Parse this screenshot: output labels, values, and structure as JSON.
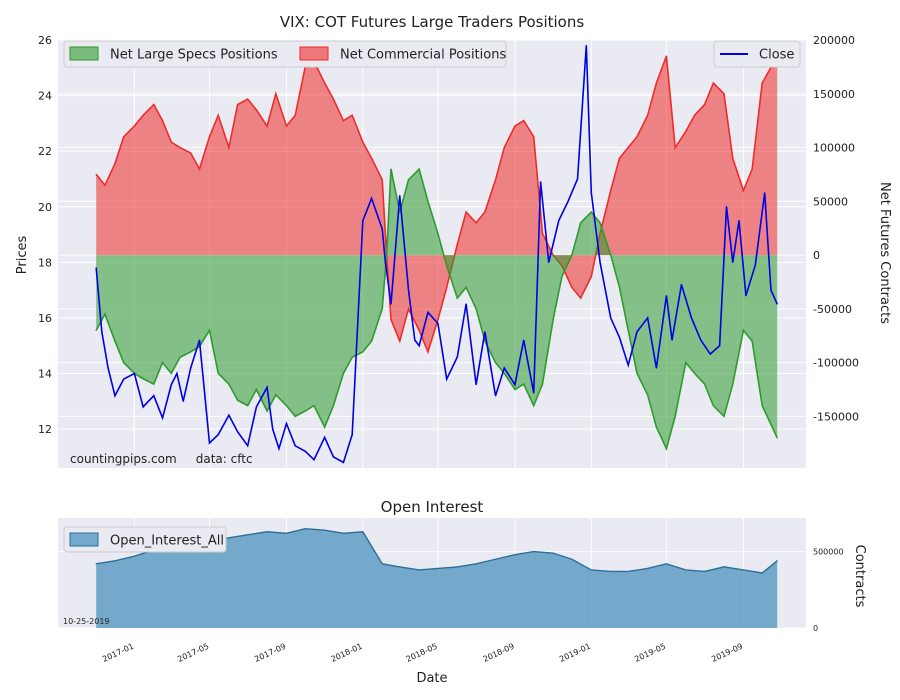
{
  "chart_data": [
    {
      "type": "area",
      "title": "VIX: COT Futures Large Traders Positions",
      "ylabel_left": "Prices",
      "ylabel_right": "Net Futures Contracts",
      "ylim_left": [
        10.6,
        26.0
      ],
      "ylim_right": [
        -198000,
        200000
      ],
      "yticks_left": [
        12,
        14,
        16,
        18,
        20,
        22,
        24,
        26
      ],
      "yticks_right": [
        -150000,
        -100000,
        -50000,
        0,
        50000,
        100000,
        150000,
        200000
      ],
      "grid": true,
      "legend_left": [
        "Net Large Specs Positions",
        "Net Commercial Positions"
      ],
      "legend_right": [
        "Close"
      ],
      "watermark": "countingpips.com     data: cftc",
      "colors": {
        "specs": "#2e9b2e",
        "commercial": "#ef2b2b",
        "close": "#0000e6",
        "background": "#eaeaf2"
      },
      "series": [
        {
          "name": "Net Large Specs Positions",
          "x": [
            "2016-11-01",
            "2016-11-15",
            "2016-12-01",
            "2016-12-15",
            "2017-01-01",
            "2017-01-15",
            "2017-02-01",
            "2017-02-15",
            "2017-03-01",
            "2017-03-15",
            "2017-04-01",
            "2017-04-15",
            "2017-05-01",
            "2017-05-15",
            "2017-06-01",
            "2017-06-15",
            "2017-07-01",
            "2017-07-15",
            "2017-08-01",
            "2017-08-15",
            "2017-09-01",
            "2017-09-15",
            "2017-10-01",
            "2017-10-15",
            "2017-11-01",
            "2017-11-15",
            "2017-12-01",
            "2017-12-15",
            "2018-01-01",
            "2018-01-15",
            "2018-02-01",
            "2018-02-08",
            "2018-02-15",
            "2018-03-01",
            "2018-03-15",
            "2018-04-01",
            "2018-04-15",
            "2018-05-01",
            "2018-05-15",
            "2018-06-01",
            "2018-06-15",
            "2018-07-01",
            "2018-07-15",
            "2018-08-01",
            "2018-08-15",
            "2018-09-01",
            "2018-09-15",
            "2018-10-01",
            "2018-10-15",
            "2018-11-01",
            "2018-11-15",
            "2018-12-01",
            "2018-12-15",
            "2019-01-01",
            "2019-01-15",
            "2019-02-01",
            "2019-02-15",
            "2019-03-01",
            "2019-03-15",
            "2019-04-01",
            "2019-04-15",
            "2019-05-01",
            "2019-05-15",
            "2019-06-01",
            "2019-06-15",
            "2019-07-01",
            "2019-07-15",
            "2019-08-01",
            "2019-08-15",
            "2019-09-01",
            "2019-09-15",
            "2019-10-01",
            "2019-10-25"
          ],
          "values": [
            -70000,
            -55000,
            -80000,
            -100000,
            -110000,
            -115000,
            -120000,
            -100000,
            -110000,
            -95000,
            -90000,
            -85000,
            -70000,
            -110000,
            -120000,
            -135000,
            -140000,
            -125000,
            -145000,
            -130000,
            -140000,
            -150000,
            -145000,
            -140000,
            -160000,
            -140000,
            -110000,
            -95000,
            -90000,
            -80000,
            -50000,
            0,
            80000,
            40000,
            70000,
            80000,
            50000,
            20000,
            -10000,
            -40000,
            -30000,
            -50000,
            -80000,
            -100000,
            -110000,
            -125000,
            -120000,
            -140000,
            -120000,
            -60000,
            -20000,
            0,
            30000,
            40000,
            30000,
            0,
            -30000,
            -70000,
            -110000,
            -130000,
            -160000,
            -180000,
            -150000,
            -100000,
            -110000,
            -120000,
            -140000,
            -150000,
            -120000,
            -70000,
            -80000,
            -140000,
            -170000
          ]
        },
        {
          "name": "Net Commercial Positions",
          "x": [
            "2016-11-01",
            "2016-11-15",
            "2016-12-01",
            "2016-12-15",
            "2017-01-01",
            "2017-01-15",
            "2017-02-01",
            "2017-02-15",
            "2017-03-01",
            "2017-03-15",
            "2017-04-01",
            "2017-04-15",
            "2017-05-01",
            "2017-05-15",
            "2017-06-01",
            "2017-06-15",
            "2017-07-01",
            "2017-07-15",
            "2017-08-01",
            "2017-08-15",
            "2017-09-01",
            "2017-09-15",
            "2017-10-01",
            "2017-10-15",
            "2017-11-01",
            "2017-11-15",
            "2017-12-01",
            "2017-12-15",
            "2018-01-01",
            "2018-01-15",
            "2018-02-01",
            "2018-02-08",
            "2018-02-15",
            "2018-03-01",
            "2018-03-15",
            "2018-04-01",
            "2018-04-15",
            "2018-05-01",
            "2018-05-15",
            "2018-06-01",
            "2018-06-15",
            "2018-07-01",
            "2018-07-15",
            "2018-08-01",
            "2018-08-15",
            "2018-09-01",
            "2018-09-15",
            "2018-10-01",
            "2018-10-15",
            "2018-11-01",
            "2018-11-15",
            "2018-12-01",
            "2018-12-15",
            "2019-01-01",
            "2019-01-15",
            "2019-02-01",
            "2019-02-15",
            "2019-03-01",
            "2019-03-15",
            "2019-04-01",
            "2019-04-15",
            "2019-05-01",
            "2019-05-15",
            "2019-06-01",
            "2019-06-15",
            "2019-07-01",
            "2019-07-15",
            "2019-08-01",
            "2019-08-15",
            "2019-09-01",
            "2019-09-15",
            "2019-10-01",
            "2019-10-25"
          ],
          "values": [
            75000,
            65000,
            85000,
            110000,
            120000,
            130000,
            140000,
            125000,
            105000,
            100000,
            95000,
            80000,
            110000,
            130000,
            100000,
            140000,
            145000,
            135000,
            120000,
            150000,
            120000,
            130000,
            175000,
            180000,
            160000,
            145000,
            125000,
            130000,
            105000,
            90000,
            70000,
            0,
            -60000,
            -80000,
            -50000,
            -70000,
            -90000,
            -60000,
            -30000,
            10000,
            40000,
            30000,
            40000,
            70000,
            100000,
            120000,
            125000,
            110000,
            20000,
            0,
            -10000,
            -30000,
            -40000,
            -20000,
            20000,
            60000,
            90000,
            100000,
            110000,
            130000,
            160000,
            185000,
            100000,
            115000,
            130000,
            140000,
            160000,
            150000,
            90000,
            60000,
            80000,
            160000,
            185000
          ]
        },
        {
          "name": "Close",
          "axis": "left",
          "x": [
            "2016-11-01",
            "2016-11-10",
            "2016-11-20",
            "2016-12-01",
            "2016-12-15",
            "2017-01-01",
            "2017-01-15",
            "2017-02-01",
            "2017-02-15",
            "2017-03-01",
            "2017-03-10",
            "2017-03-20",
            "2017-04-01",
            "2017-04-15",
            "2017-05-01",
            "2017-05-15",
            "2017-06-01",
            "2017-06-15",
            "2017-07-01",
            "2017-07-15",
            "2017-08-01",
            "2017-08-10",
            "2017-08-20",
            "2017-09-01",
            "2017-09-15",
            "2017-10-01",
            "2017-10-15",
            "2017-11-01",
            "2017-11-15",
            "2017-12-01",
            "2017-12-15",
            "2018-01-01",
            "2018-01-15",
            "2018-02-01",
            "2018-02-06",
            "2018-02-15",
            "2018-03-01",
            "2018-03-15",
            "2018-03-25",
            "2018-04-01",
            "2018-04-15",
            "2018-05-01",
            "2018-05-15",
            "2018-06-01",
            "2018-06-15",
            "2018-07-01",
            "2018-07-15",
            "2018-08-01",
            "2018-08-15",
            "2018-09-01",
            "2018-09-15",
            "2018-10-01",
            "2018-10-12",
            "2018-10-25",
            "2018-11-10",
            "2018-11-25",
            "2018-12-10",
            "2018-12-24",
            "2019-01-01",
            "2019-01-15",
            "2019-02-01",
            "2019-02-15",
            "2019-03-01",
            "2019-03-15",
            "2019-04-01",
            "2019-04-15",
            "2019-05-01",
            "2019-05-10",
            "2019-05-25",
            "2019-06-10",
            "2019-06-25",
            "2019-07-10",
            "2019-07-25",
            "2019-08-05",
            "2019-08-15",
            "2019-08-25",
            "2019-09-05",
            "2019-09-20",
            "2019-10-05",
            "2019-10-15",
            "2019-10-25"
          ],
          "values": [
            17.8,
            15.5,
            14.2,
            13.2,
            13.8,
            14.0,
            12.8,
            13.2,
            12.4,
            13.6,
            14.0,
            13.0,
            14.2,
            15.2,
            11.5,
            11.8,
            12.5,
            11.9,
            11.4,
            12.8,
            13.5,
            12.0,
            11.3,
            12.2,
            11.4,
            11.2,
            10.9,
            11.7,
            11.0,
            10.8,
            11.8,
            19.5,
            20.3,
            19.2,
            18.0,
            16.5,
            20.4,
            17.0,
            15.2,
            15.0,
            16.2,
            15.8,
            13.8,
            14.6,
            16.5,
            13.6,
            15.5,
            13.2,
            14.2,
            13.6,
            15.2,
            13.3,
            20.9,
            18.0,
            19.5,
            20.2,
            21.0,
            25.8,
            20.5,
            18.0,
            16.0,
            15.3,
            14.3,
            15.5,
            16.0,
            14.2,
            16.8,
            15.2,
            17.2,
            16.0,
            15.2,
            14.7,
            15.0,
            20.0,
            18.0,
            19.5,
            16.8,
            17.9,
            20.5,
            17.0,
            16.5
          ]
        }
      ]
    },
    {
      "type": "area",
      "title": "Open Interest",
      "xlabel": "Date",
      "ylabel": "Contracts",
      "ylim": [
        0,
        720000
      ],
      "yticks": [
        0,
        500000
      ],
      "xticks": [
        "2017-01",
        "2017-05",
        "2017-09",
        "2018-01",
        "2018-05",
        "2018-09",
        "2019-01",
        "2019-05",
        "2019-09"
      ],
      "legend": [
        "Open_Interest_All"
      ],
      "date_label": "10-25-2019",
      "colors": {
        "fill": "#5f9ec5",
        "line": "#2d6f9a"
      },
      "series": [
        {
          "name": "Open_Interest_All",
          "x": [
            "2016-11-01",
            "2016-12-01",
            "2017-01-01",
            "2017-02-01",
            "2017-03-01",
            "2017-04-01",
            "2017-05-01",
            "2017-06-01",
            "2017-07-01",
            "2017-08-01",
            "2017-09-01",
            "2017-10-01",
            "2017-11-01",
            "2017-12-01",
            "2018-01-01",
            "2018-02-01",
            "2018-03-01",
            "2018-04-01",
            "2018-05-01",
            "2018-06-01",
            "2018-07-01",
            "2018-08-01",
            "2018-09-01",
            "2018-10-01",
            "2018-11-01",
            "2018-12-01",
            "2019-01-01",
            "2019-02-01",
            "2019-03-01",
            "2019-04-01",
            "2019-05-01",
            "2019-06-01",
            "2019-07-01",
            "2019-08-01",
            "2019-09-01",
            "2019-10-01",
            "2019-10-25"
          ],
          "values": [
            420000,
            440000,
            470000,
            510000,
            540000,
            580000,
            560000,
            590000,
            610000,
            630000,
            620000,
            650000,
            640000,
            620000,
            630000,
            420000,
            400000,
            380000,
            390000,
            400000,
            420000,
            450000,
            480000,
            500000,
            490000,
            450000,
            380000,
            370000,
            370000,
            390000,
            420000,
            380000,
            370000,
            400000,
            380000,
            360000,
            440000
          ]
        }
      ]
    }
  ]
}
